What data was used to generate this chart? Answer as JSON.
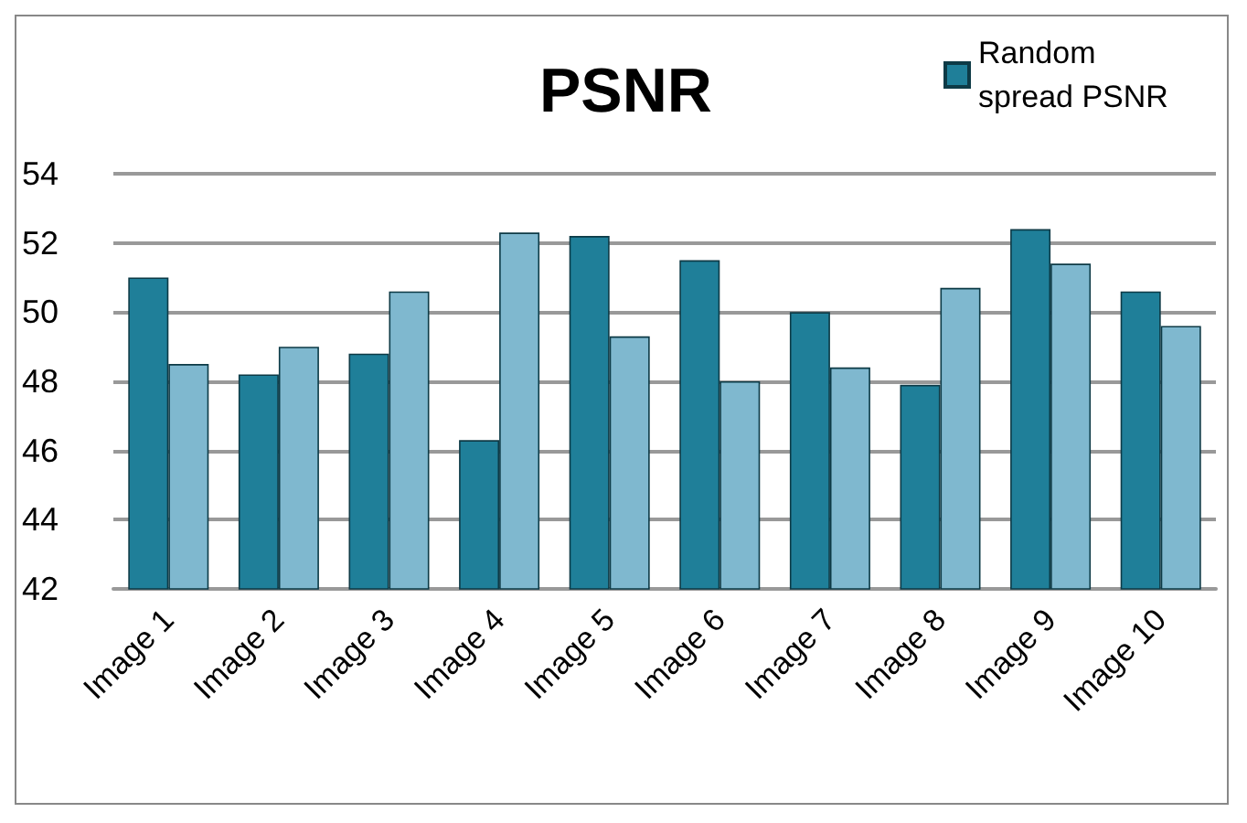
{
  "chart_data": {
    "type": "bar",
    "title": "PSNR",
    "categories": [
      "Image 1",
      "Image 2",
      "Image 3",
      "Image 4",
      "Image 5",
      "Image 6",
      "Image 7",
      "Image 8",
      "Image 9",
      "Image 10"
    ],
    "series": [
      {
        "name": "Random spread PSNR",
        "color": "#1f7f99",
        "values": [
          51.0,
          48.2,
          48.8,
          46.3,
          52.2,
          51.5,
          50.0,
          47.9,
          52.4,
          50.6
        ]
      },
      {
        "color": "#7fb8cf",
        "values": [
          48.5,
          49.0,
          50.6,
          52.3,
          49.3,
          48.0,
          48.4,
          50.7,
          51.4,
          49.6
        ]
      }
    ],
    "ylim": [
      42,
      54
    ],
    "yticks": [
      42,
      44,
      46,
      48,
      50,
      52,
      54
    ],
    "grid": "y",
    "legend": "top right"
  }
}
